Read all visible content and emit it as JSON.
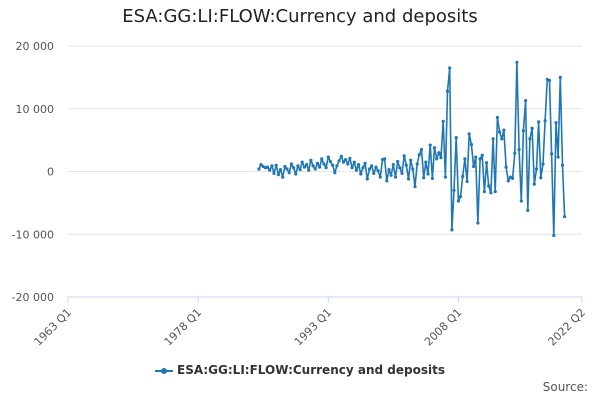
{
  "chart_data": {
    "type": "line",
    "title": "ESA:GG:LI:FLOW:Currency and deposits",
    "xlabel": "",
    "ylabel": "",
    "x_tick_labels": [
      "1963 Q1",
      "1978 Q1",
      "1993 Q1",
      "2008 Q1",
      "2022 Q2"
    ],
    "x_range": [
      "1963 Q1",
      "2022 Q2"
    ],
    "y_tick_labels": [
      "20 000",
      "10 000",
      "0",
      "-10 000",
      "-20 000"
    ],
    "y_ticks": [
      20000,
      10000,
      0,
      -10000,
      -20000
    ],
    "ylim": [
      -20000,
      20000
    ],
    "grid": true,
    "legend_position": "bottom-center",
    "series": [
      {
        "name": "ESA:GG:LI:FLOW:Currency and deposits",
        "color": "#1f77b4",
        "points": [
          [
            "1985 Q1",
            400
          ],
          [
            "1985 Q2",
            1100
          ],
          [
            "1985 Q3",
            800
          ],
          [
            "1985 Q4",
            600
          ],
          [
            "1986 Q1",
            700
          ],
          [
            "1986 Q2",
            200
          ],
          [
            "1986 Q3",
            900
          ],
          [
            "1986 Q4",
            -300
          ],
          [
            "1987 Q1",
            1000
          ],
          [
            "1987 Q2",
            -500
          ],
          [
            "1987 Q3",
            300
          ],
          [
            "1987 Q4",
            -900
          ],
          [
            "1988 Q1",
            800
          ],
          [
            "1988 Q2",
            400
          ],
          [
            "1988 Q3",
            -200
          ],
          [
            "1988 Q4",
            1200
          ],
          [
            "1989 Q1",
            600
          ],
          [
            "1989 Q2",
            -400
          ],
          [
            "1989 Q3",
            900
          ],
          [
            "1989 Q4",
            300
          ],
          [
            "1990 Q1",
            1500
          ],
          [
            "1990 Q2",
            700
          ],
          [
            "1990 Q3",
            1100
          ],
          [
            "1990 Q4",
            200
          ],
          [
            "1991 Q1",
            1800
          ],
          [
            "1991 Q2",
            900
          ],
          [
            "1991 Q3",
            400
          ],
          [
            "1991 Q4",
            1300
          ],
          [
            "1992 Q1",
            700
          ],
          [
            "1992 Q2",
            2000
          ],
          [
            "1992 Q3",
            1200
          ],
          [
            "1992 Q4",
            600
          ],
          [
            "1993 Q1",
            2300
          ],
          [
            "1993 Q2",
            1600
          ],
          [
            "1993 Q3",
            1000
          ],
          [
            "1993 Q4",
            -200
          ],
          [
            "1994 Q1",
            900
          ],
          [
            "1994 Q2",
            1700
          ],
          [
            "1994 Q3",
            2400
          ],
          [
            "1994 Q4",
            1500
          ],
          [
            "1995 Q1",
            1900
          ],
          [
            "1995 Q2",
            1200
          ],
          [
            "1995 Q3",
            2100
          ],
          [
            "1995 Q4",
            600
          ],
          [
            "1996 Q1",
            1500
          ],
          [
            "1996 Q2",
            200
          ],
          [
            "1996 Q3",
            1100
          ],
          [
            "1996 Q4",
            -400
          ],
          [
            "1997 Q1",
            600
          ],
          [
            "1997 Q2",
            1300
          ],
          [
            "1997 Q3",
            -1200
          ],
          [
            "1997 Q4",
            400
          ],
          [
            "1998 Q1",
            900
          ],
          [
            "1998 Q2",
            -300
          ],
          [
            "1998 Q3",
            700
          ],
          [
            "1998 Q4",
            100
          ],
          [
            "1999 Q1",
            -900
          ],
          [
            "1999 Q2",
            1900
          ],
          [
            "1999 Q3",
            2000
          ],
          [
            "1999 Q4",
            -1500
          ],
          [
            "2000 Q1",
            300
          ],
          [
            "2000 Q2",
            -600
          ],
          [
            "2000 Q3",
            1100
          ],
          [
            "2000 Q4",
            -900
          ],
          [
            "2001 Q1",
            1600
          ],
          [
            "2001 Q2",
            600
          ],
          [
            "2001 Q3",
            -300
          ],
          [
            "2001 Q4",
            2500
          ],
          [
            "2002 Q1",
            1000
          ],
          [
            "2002 Q2",
            -1200
          ],
          [
            "2002 Q3",
            1800
          ],
          [
            "2002 Q4",
            400
          ],
          [
            "2003 Q1",
            -2400
          ],
          [
            "2003 Q2",
            1200
          ],
          [
            "2003 Q3",
            2700
          ],
          [
            "2003 Q4",
            3500
          ],
          [
            "2004 Q1",
            -1000
          ],
          [
            "2004 Q2",
            1500
          ],
          [
            "2004 Q3",
            -400
          ],
          [
            "2004 Q4",
            4200
          ],
          [
            "2005 Q1",
            -1100
          ],
          [
            "2005 Q2",
            3800
          ],
          [
            "2005 Q3",
            2000
          ],
          [
            "2005 Q4",
            3000
          ],
          [
            "2006 Q1",
            2200
          ],
          [
            "2006 Q2",
            8000
          ],
          [
            "2006 Q3",
            -900
          ],
          [
            "2006 Q4",
            12800
          ],
          [
            "2007 Q1",
            16500
          ],
          [
            "2007 Q2",
            -9300
          ],
          [
            "2007 Q3",
            -3000
          ],
          [
            "2007 Q4",
            5400
          ],
          [
            "2008 Q1",
            -4700
          ],
          [
            "2008 Q2",
            -4000
          ],
          [
            "2008 Q3",
            -800
          ],
          [
            "2008 Q4",
            2000
          ],
          [
            "2009 Q1",
            -1600
          ],
          [
            "2009 Q2",
            6000
          ],
          [
            "2009 Q3",
            4300
          ],
          [
            "2009 Q4",
            800
          ],
          [
            "2010 Q1",
            2300
          ],
          [
            "2010 Q2",
            -8200
          ],
          [
            "2010 Q3",
            2000
          ],
          [
            "2010 Q4",
            2600
          ],
          [
            "2011 Q1",
            -3200
          ],
          [
            "2011 Q2",
            1400
          ],
          [
            "2011 Q3",
            -2300
          ],
          [
            "2011 Q4",
            -3400
          ],
          [
            "2012 Q1",
            5200
          ],
          [
            "2012 Q2",
            -3200
          ],
          [
            "2012 Q3",
            8600
          ],
          [
            "2012 Q4",
            6300
          ],
          [
            "2013 Q1",
            5200
          ],
          [
            "2013 Q2",
            6600
          ],
          [
            "2013 Q3",
            700
          ],
          [
            "2013 Q4",
            -1500
          ],
          [
            "2014 Q1",
            -900
          ],
          [
            "2014 Q2",
            -1100
          ],
          [
            "2014 Q3",
            2900
          ],
          [
            "2014 Q4",
            17400
          ],
          [
            "2015 Q1",
            3500
          ],
          [
            "2015 Q2",
            -4700
          ],
          [
            "2015 Q3",
            6500
          ],
          [
            "2015 Q4",
            11300
          ],
          [
            "2016 Q1",
            -6200
          ],
          [
            "2016 Q2",
            5200
          ],
          [
            "2016 Q3",
            6900
          ],
          [
            "2016 Q4",
            -2000
          ],
          [
            "2017 Q1",
            400
          ],
          [
            "2017 Q2",
            7900
          ],
          [
            "2017 Q3",
            -1000
          ],
          [
            "2017 Q4",
            1200
          ],
          [
            "2018 Q1",
            8100
          ],
          [
            "2018 Q2",
            14700
          ],
          [
            "2018 Q3",
            14500
          ],
          [
            "2018 Q4",
            2800
          ],
          [
            "2019 Q1",
            -10200
          ],
          [
            "2019 Q2",
            7800
          ],
          [
            "2019 Q3",
            2300
          ],
          [
            "2019 Q4",
            15000
          ],
          [
            "2020 Q1",
            1000
          ],
          [
            "2020 Q2",
            -7200
          ]
        ]
      }
    ],
    "source_label": "Source:"
  }
}
